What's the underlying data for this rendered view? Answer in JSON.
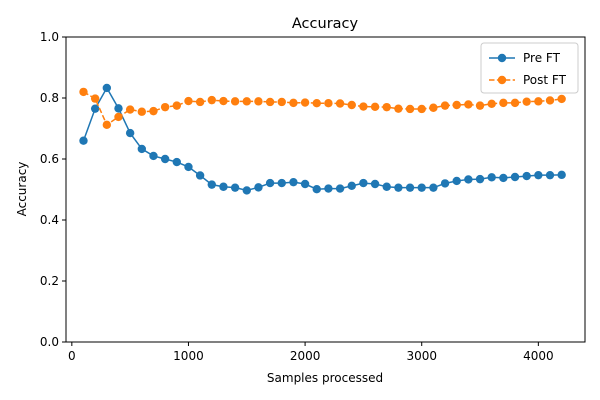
{
  "chart_data": {
    "type": "line",
    "title": "Accuracy",
    "xlabel": "Samples processed",
    "ylabel": "Accuracy",
    "xlim": [
      -50,
      4400
    ],
    "ylim": [
      0.0,
      1.0
    ],
    "xticks": [
      0,
      1000,
      2000,
      3000,
      4000
    ],
    "yticks": [
      0.0,
      0.2,
      0.4,
      0.6,
      0.8,
      1.0
    ],
    "xtick_labels": [
      "0",
      "1000",
      "2000",
      "3000",
      "4000"
    ],
    "ytick_labels": [
      "0.0",
      "0.2",
      "0.4",
      "0.6",
      "0.8",
      "1.0"
    ],
    "grid": false,
    "legend_position": "top-right",
    "x": [
      100,
      200,
      300,
      400,
      500,
      600,
      700,
      800,
      900,
      1000,
      1100,
      1200,
      1300,
      1400,
      1500,
      1600,
      1700,
      1800,
      1900,
      2000,
      2100,
      2200,
      2300,
      2400,
      2500,
      2600,
      2700,
      2800,
      2900,
      3000,
      3100,
      3200,
      3300,
      3400,
      3500,
      3600,
      3700,
      3800,
      3900,
      4000,
      4100,
      4200
    ],
    "series": [
      {
        "name": "Pre FT",
        "color": "#1f77b4",
        "linestyle": "solid",
        "values": [
          0.66,
          0.765,
          0.833,
          0.766,
          0.685,
          0.633,
          0.61,
          0.6,
          0.59,
          0.574,
          0.546,
          0.516,
          0.509,
          0.506,
          0.497,
          0.507,
          0.521,
          0.521,
          0.524,
          0.518,
          0.501,
          0.503,
          0.503,
          0.512,
          0.521,
          0.518,
          0.509,
          0.506,
          0.506,
          0.506,
          0.506,
          0.52,
          0.528,
          0.533,
          0.534,
          0.54,
          0.538,
          0.541,
          0.544,
          0.547,
          0.547,
          0.548
        ]
      },
      {
        "name": "Post FT",
        "color": "#ff7f0e",
        "linestyle": "dashed",
        "values": [
          0.82,
          0.798,
          0.712,
          0.738,
          0.762,
          0.755,
          0.757,
          0.77,
          0.775,
          0.79,
          0.787,
          0.793,
          0.79,
          0.789,
          0.789,
          0.789,
          0.787,
          0.787,
          0.784,
          0.785,
          0.783,
          0.783,
          0.782,
          0.777,
          0.772,
          0.771,
          0.77,
          0.765,
          0.764,
          0.764,
          0.768,
          0.775,
          0.777,
          0.779,
          0.775,
          0.781,
          0.784,
          0.784,
          0.788,
          0.789,
          0.792,
          0.797
        ]
      }
    ]
  }
}
